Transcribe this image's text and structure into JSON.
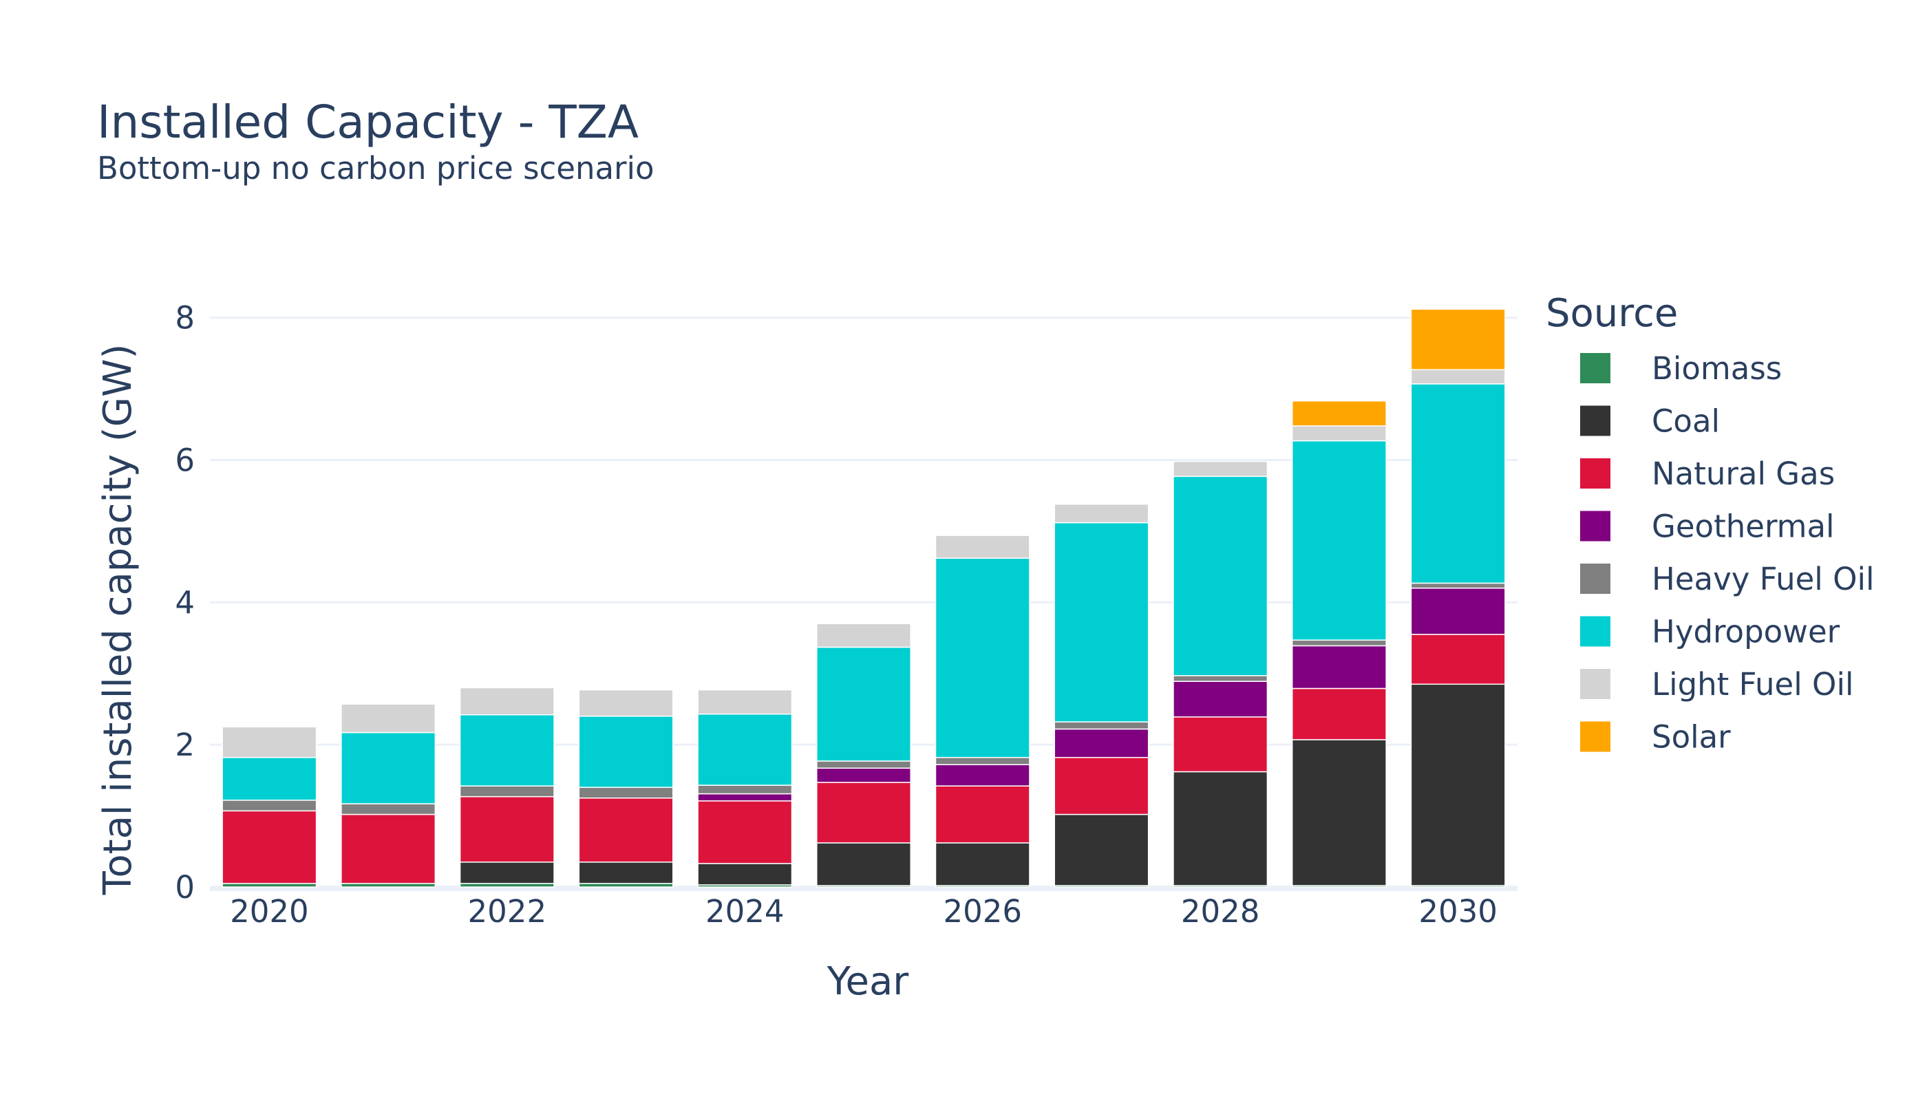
{
  "chart_data": {
    "type": "bar",
    "stacked": true,
    "title": "Installed Capacity - TZA",
    "subtitle": "Bottom-up no carbon price scenario",
    "xlabel": "Year",
    "ylabel": "Total installed capacity (GW)",
    "ylim": [
      0,
      8.5
    ],
    "yticks": [
      0,
      2,
      4,
      6,
      8
    ],
    "xticks": [
      2020,
      2022,
      2024,
      2026,
      2028,
      2030
    ],
    "grid": true,
    "legend_title": "Source",
    "legend_position": "right",
    "categories": [
      2020,
      2021,
      2022,
      2023,
      2024,
      2025,
      2026,
      2027,
      2028,
      2029,
      2030
    ],
    "series": [
      {
        "name": "Biomass",
        "color": "#2e8b57",
        "values": [
          0.05,
          0.05,
          0.05,
          0.05,
          0.03,
          0.02,
          0.02,
          0.02,
          0.02,
          0.02,
          0.02
        ]
      },
      {
        "name": "Coal",
        "color": "#333333",
        "values": [
          0.0,
          0.0,
          0.3,
          0.3,
          0.3,
          0.6,
          0.6,
          1.0,
          1.6,
          2.05,
          2.83
        ]
      },
      {
        "name": "Natural Gas",
        "color": "#dc143c",
        "values": [
          1.02,
          0.97,
          0.92,
          0.9,
          0.88,
          0.85,
          0.8,
          0.8,
          0.77,
          0.72,
          0.7
        ]
      },
      {
        "name": "Geothermal",
        "color": "#800080",
        "values": [
          0.0,
          0.0,
          0.0,
          0.0,
          0.1,
          0.2,
          0.3,
          0.4,
          0.5,
          0.6,
          0.65
        ]
      },
      {
        "name": "Heavy Fuel Oil",
        "color": "#808080",
        "values": [
          0.15,
          0.15,
          0.15,
          0.15,
          0.12,
          0.1,
          0.1,
          0.1,
          0.08,
          0.08,
          0.07
        ]
      },
      {
        "name": "Hydropower",
        "color": "#00ced1",
        "values": [
          0.6,
          1.0,
          1.0,
          1.0,
          1.0,
          1.6,
          2.8,
          2.8,
          2.8,
          2.8,
          2.8
        ]
      },
      {
        "name": "Light Fuel Oil",
        "color": "#d3d3d3",
        "values": [
          0.43,
          0.4,
          0.38,
          0.37,
          0.34,
          0.33,
          0.32,
          0.26,
          0.21,
          0.21,
          0.2
        ]
      },
      {
        "name": "Solar",
        "color": "#ffa500",
        "values": [
          0.0,
          0.0,
          0.0,
          0.0,
          0.0,
          0.0,
          0.0,
          0.0,
          0.0,
          0.35,
          0.85
        ]
      }
    ]
  }
}
